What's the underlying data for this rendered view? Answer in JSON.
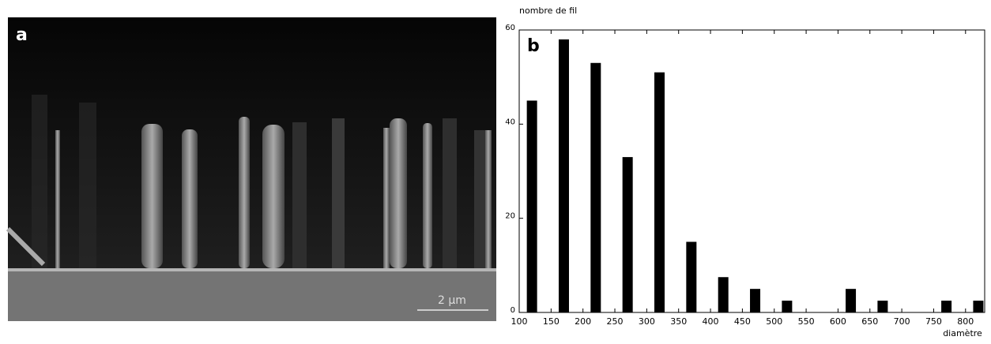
{
  "panel_a": {
    "label": "a",
    "scale_bar": "2 µm"
  },
  "chart_data": {
    "type": "bar",
    "panel_label": "b",
    "y_label": "nombre de fil",
    "x_label": "diamètre",
    "x": [
      120,
      170,
      220,
      270,
      320,
      370,
      420,
      470,
      520,
      620,
      670,
      770,
      820
    ],
    "values": [
      45,
      58,
      53,
      33,
      51,
      15,
      7.5,
      5,
      2.5,
      5,
      2.5,
      2.5,
      2.5
    ],
    "color": "#000000",
    "xlim": [
      100,
      830
    ],
    "xticks": [
      100,
      150,
      200,
      250,
      300,
      350,
      400,
      450,
      500,
      550,
      600,
      650,
      700,
      750,
      800
    ],
    "ylim": [
      0,
      60
    ],
    "yticks": [
      0,
      20,
      40,
      60
    ]
  }
}
